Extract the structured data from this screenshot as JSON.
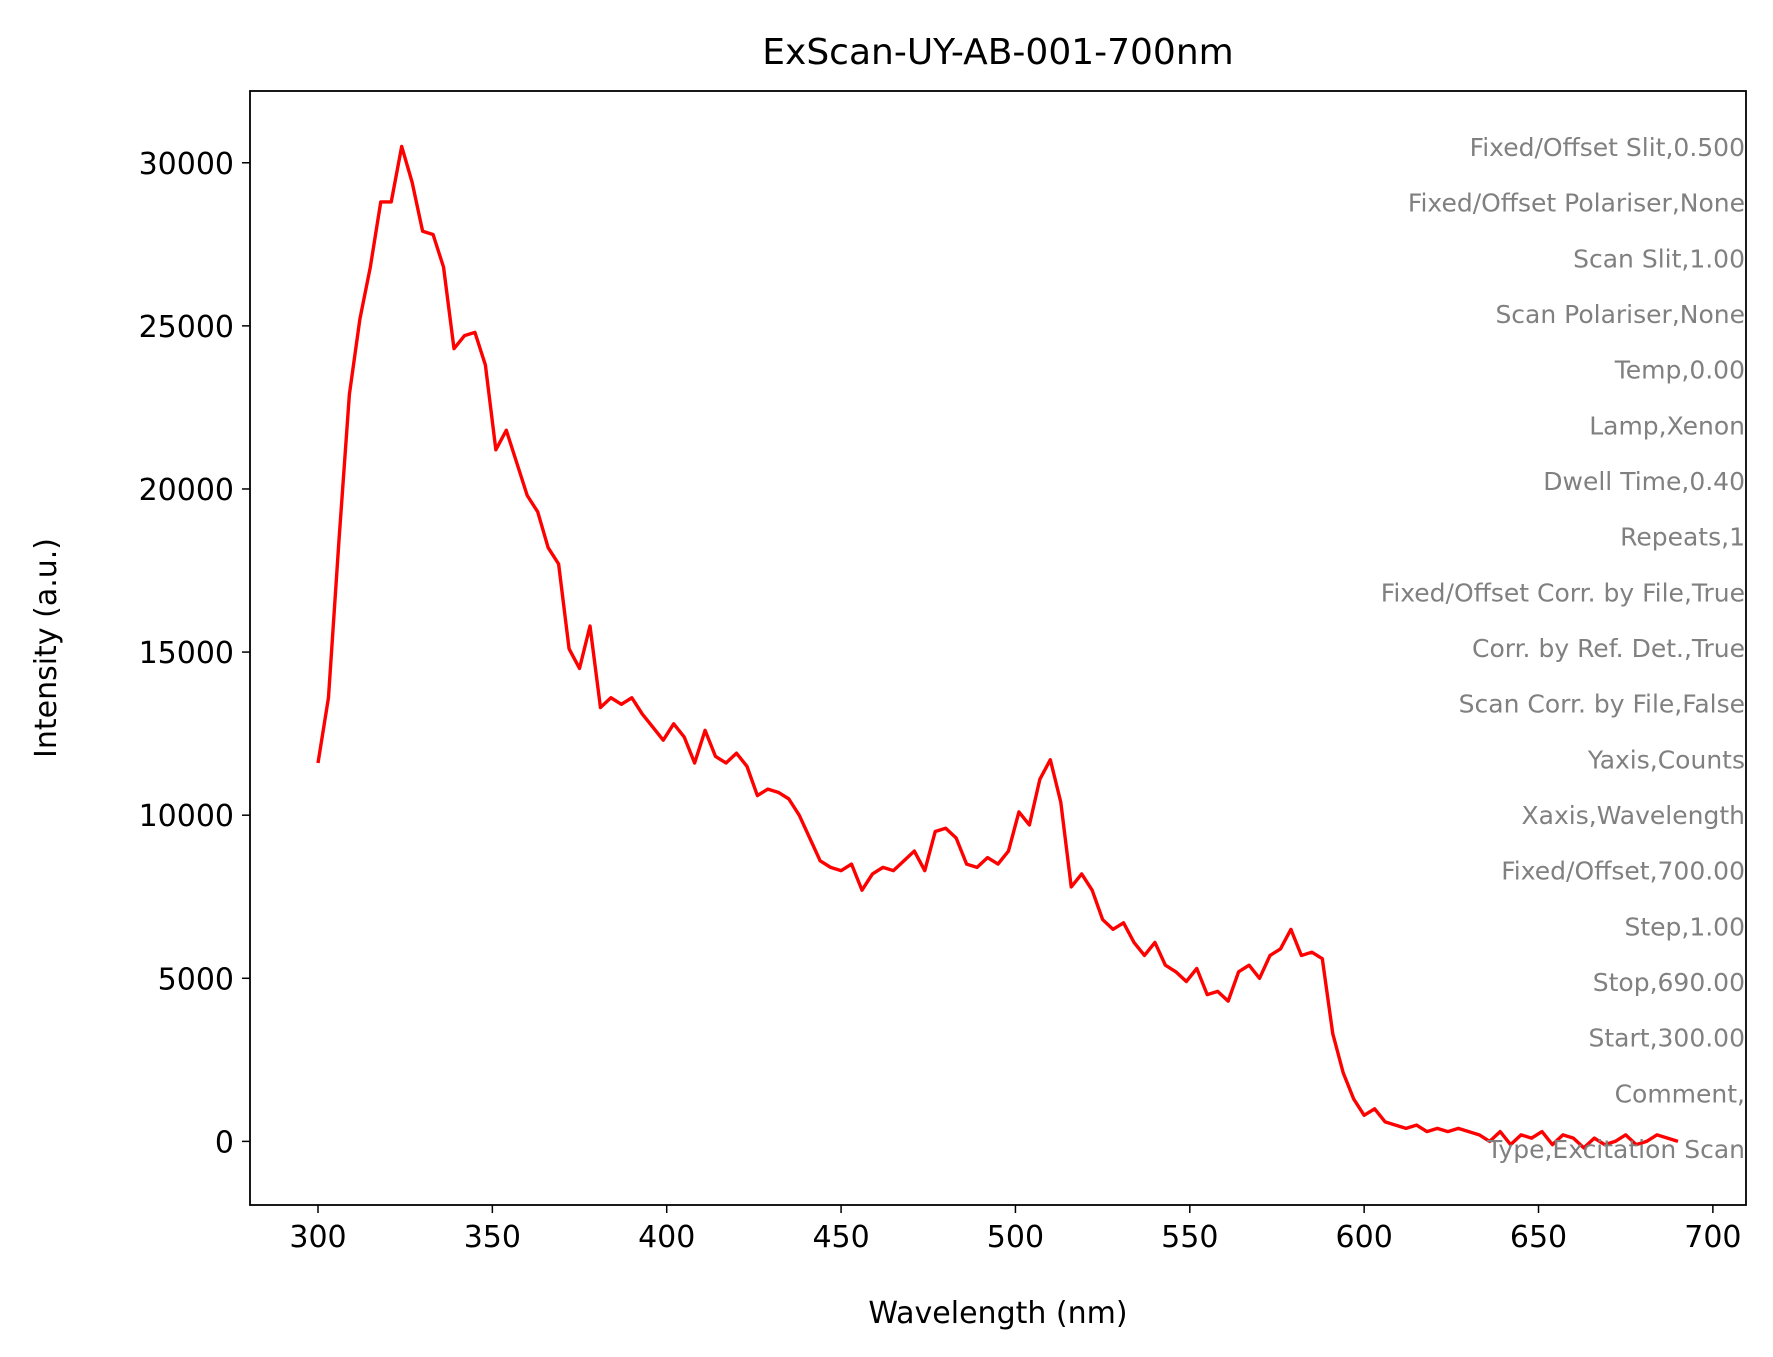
{
  "chart_data": {
    "type": "line",
    "title": "ExScan-UY-AB-001-700nm",
    "x_label": "Wavelength (nm)",
    "y_label": "Intensity (a.u.)",
    "color": "#ff0000",
    "x": [
      300,
      303,
      306,
      309,
      312,
      315,
      318,
      321,
      324,
      327,
      330,
      333,
      336,
      339,
      342,
      345,
      348,
      351,
      354,
      357,
      360,
      363,
      366,
      369,
      372,
      375,
      378,
      381,
      384,
      387,
      390,
      393,
      396,
      399,
      402,
      405,
      408,
      411,
      414,
      417,
      420,
      423,
      426,
      429,
      432,
      435,
      438,
      441,
      444,
      447,
      450,
      453,
      456,
      459,
      462,
      465,
      468,
      471,
      474,
      477,
      480,
      483,
      486,
      489,
      492,
      495,
      498,
      501,
      504,
      507,
      510,
      513,
      516,
      519,
      522,
      525,
      528,
      531,
      534,
      537,
      540,
      543,
      546,
      549,
      552,
      555,
      558,
      561,
      564,
      567,
      570,
      573,
      576,
      579,
      582,
      585,
      588,
      591,
      594,
      597,
      600,
      603,
      606,
      609,
      612,
      615,
      618,
      621,
      624,
      627,
      630,
      633,
      636,
      639,
      642,
      645,
      648,
      651,
      654,
      657,
      660,
      663,
      666,
      669,
      672,
      675,
      678,
      681,
      684,
      687,
      690
    ],
    "values": [
      11600,
      13600,
      18400,
      22900,
      25200,
      26800,
      28800,
      28800,
      30500,
      29400,
      27900,
      27800,
      26800,
      24300,
      24700,
      24800,
      23800,
      21200,
      21800,
      20800,
      19800,
      19300,
      18200,
      17700,
      15100,
      14500,
      15800,
      13300,
      13600,
      13400,
      13600,
      13100,
      12700,
      12300,
      12800,
      12400,
      11600,
      12600,
      11800,
      11600,
      11900,
      11500,
      10600,
      10800,
      10700,
      10500,
      10000,
      9300,
      8600,
      8400,
      8300,
      8500,
      7700,
      8200,
      8400,
      8300,
      8600,
      8900,
      8300,
      9500,
      9600,
      9300,
      8500,
      8400,
      8700,
      8500,
      8900,
      10100,
      9700,
      11100,
      11700,
      10400,
      7800,
      8200,
      7700,
      6800,
      6500,
      6700,
      6100,
      5700,
      6100,
      5400,
      5200,
      4900,
      5300,
      4500,
      4600,
      4300,
      5200,
      5400,
      5000,
      5700,
      5900,
      6500,
      5700,
      5800,
      5600,
      3300,
      2100,
      1300,
      800,
      1000,
      600,
      500,
      400,
      500,
      300,
      400,
      300,
      400,
      300,
      200,
      0,
      300,
      -100,
      200,
      100,
      300,
      -100,
      200,
      100,
      -200,
      100,
      -100,
      0,
      200,
      -100,
      0,
      200,
      100,
      0
    ],
    "xlim": [
      280.5,
      709.5
    ],
    "ylim": [
      -1950,
      32200
    ],
    "xticks": [
      300,
      350,
      400,
      450,
      500,
      550,
      600,
      650,
      700
    ],
    "yticks": [
      0,
      5000,
      10000,
      15000,
      20000,
      25000,
      30000
    ],
    "annotations": [
      "Fixed/Offset Slit,0.500",
      "Fixed/Offset Polariser,None",
      "Scan Slit,1.00",
      "Scan Polariser,None",
      "Temp,0.00",
      "Lamp,Xenon",
      "Dwell Time,0.40",
      "Repeats,1",
      "Fixed/Offset Corr. by File,True",
      "Corr. by Ref. Det.,True",
      "Scan Corr. by File,False",
      "Yaxis,Counts",
      "Xaxis,Wavelength",
      "Fixed/Offset,700.00",
      "Step,1.00",
      "Stop,690.00",
      "Start,300.00",
      "Comment,",
      "Type,Excitation Scan"
    ]
  }
}
